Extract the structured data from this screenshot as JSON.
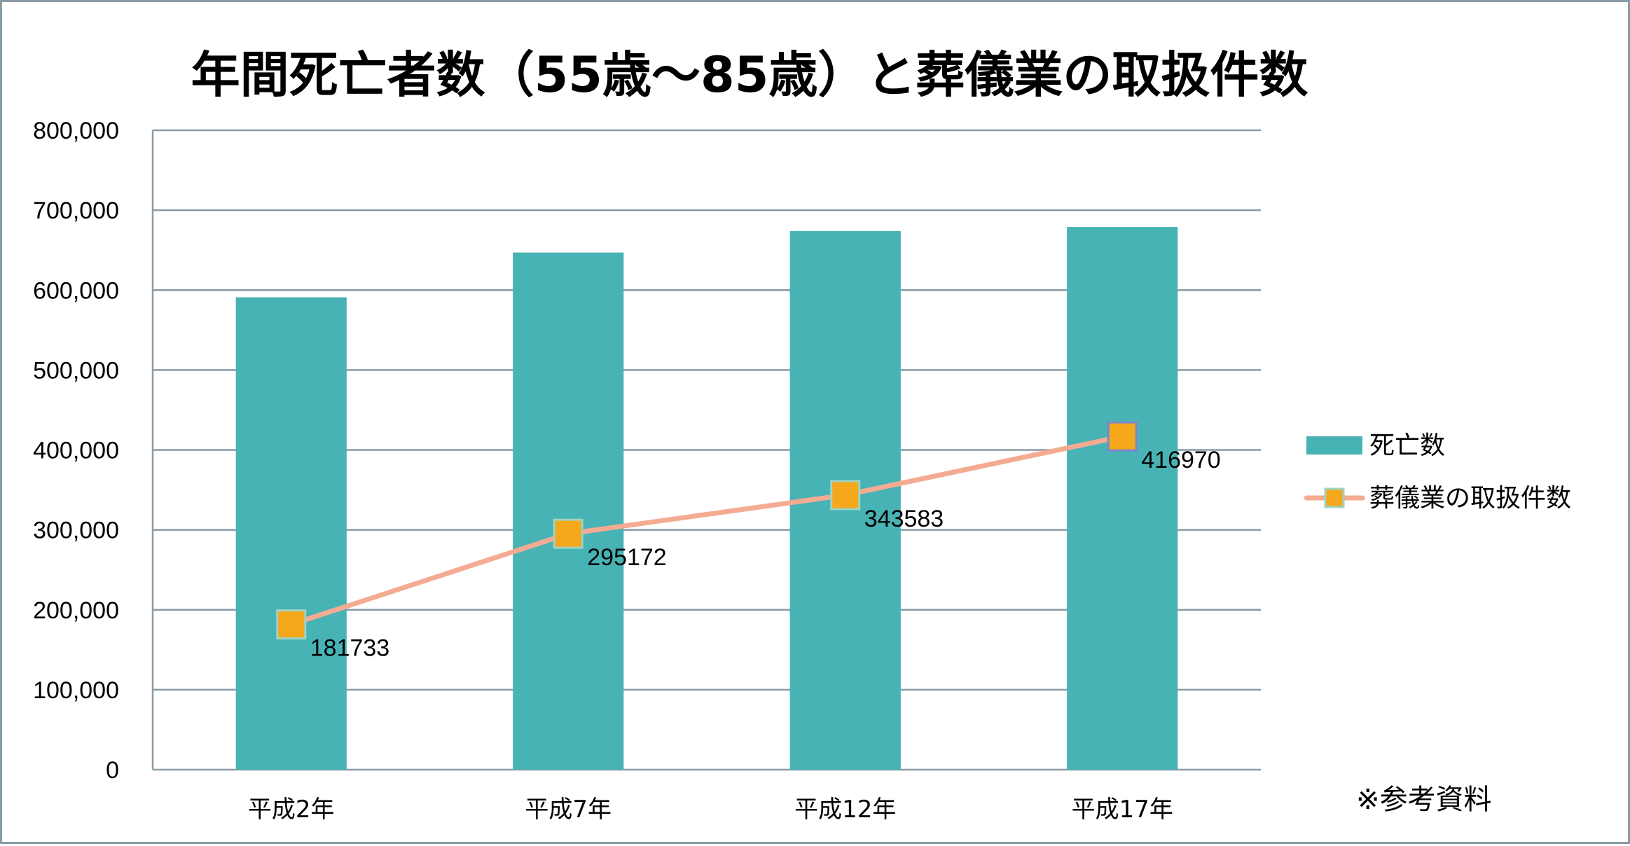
{
  "chart_data": {
    "type": "bar",
    "title": "年間死亡者数（55歳～85歳）と葬儀業の取扱件数",
    "categories": [
      "平成2年",
      "平成7年",
      "平成12年",
      "平成17年"
    ],
    "series": [
      {
        "name": "死亡数",
        "kind": "bar",
        "color": "#48b3b5",
        "values": [
          591000,
          647000,
          674000,
          679000
        ]
      },
      {
        "name": "葬儀業の取扱件数",
        "kind": "line",
        "color": "#f4ab92",
        "marker_color": "#f5a81c",
        "values": [
          181733,
          295172,
          343583,
          416970
        ],
        "data_labels": [
          "181733",
          "295172",
          "343583",
          "416970"
        ]
      }
    ],
    "ylim": [
      0,
      800000
    ],
    "yticks": [
      0,
      100000,
      200000,
      300000,
      400000,
      500000,
      600000,
      700000,
      800000
    ],
    "ytick_labels": [
      "0",
      "100,000",
      "200,000",
      "300,000",
      "400,000",
      "500,000",
      "600,000",
      "700,000",
      "800,000"
    ],
    "xlabel": "",
    "ylabel": "",
    "grid": true,
    "legend_position": "right",
    "note": "※参考資料"
  }
}
